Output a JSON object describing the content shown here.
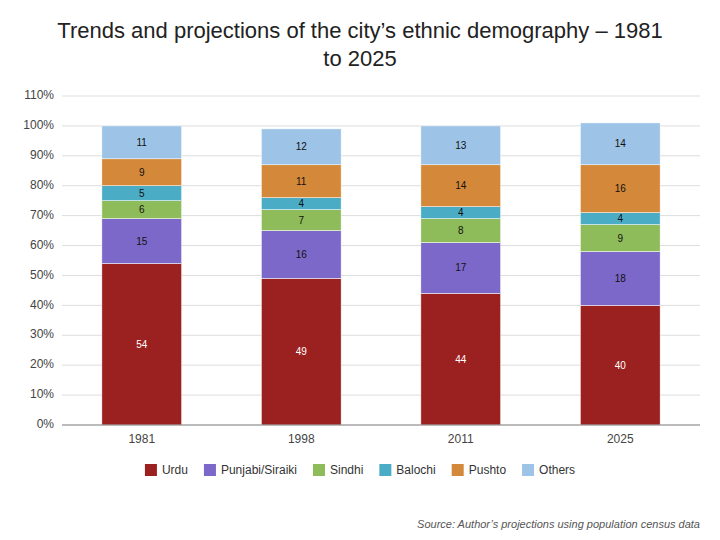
{
  "chart_data": {
    "type": "bar",
    "stacked": true,
    "title": "Trends and projections of the city’s ethnic demography – 1981 to 2025",
    "annotations": [
      "Source: Author’s projections using population census data"
    ],
    "categories": [
      "1981",
      "1998",
      "2011",
      "2025"
    ],
    "series": [
      {
        "name": "Urdu",
        "color": "#9B2020",
        "values": [
          54,
          49,
          44,
          40
        ]
      },
      {
        "name": "Punjabi/Siraiki",
        "color": "#7B68C8",
        "values": [
          15,
          16,
          17,
          18
        ]
      },
      {
        "name": "Sindhi",
        "color": "#8FBC5A",
        "values": [
          6,
          7,
          8,
          9
        ]
      },
      {
        "name": "Balochi",
        "color": "#4BACC6",
        "values": [
          5,
          4,
          4,
          4
        ]
      },
      {
        "name": "Pushto",
        "color": "#D4883A",
        "values": [
          9,
          11,
          14,
          16
        ]
      },
      {
        "name": "Others",
        "color": "#9DC3E6",
        "values": [
          11,
          12,
          13,
          14
        ]
      }
    ],
    "ylim": [
      0,
      110
    ],
    "yticks": [
      {
        "value": 0,
        "label": "0%"
      },
      {
        "value": 10,
        "label": "10%"
      },
      {
        "value": 20,
        "label": "20%"
      },
      {
        "value": 30,
        "label": "30%"
      },
      {
        "value": 40,
        "label": "40%"
      },
      {
        "value": 50,
        "label": "50%"
      },
      {
        "value": 60,
        "label": "60%"
      },
      {
        "value": 70,
        "label": "70%"
      },
      {
        "value": 80,
        "label": "80%"
      },
      {
        "value": 90,
        "label": "90%"
      },
      {
        "value": 100,
        "label": "100%"
      },
      {
        "value": 110,
        "label": "110%"
      }
    ],
    "grid": true,
    "legend": "bottom",
    "data_labels": true
  }
}
